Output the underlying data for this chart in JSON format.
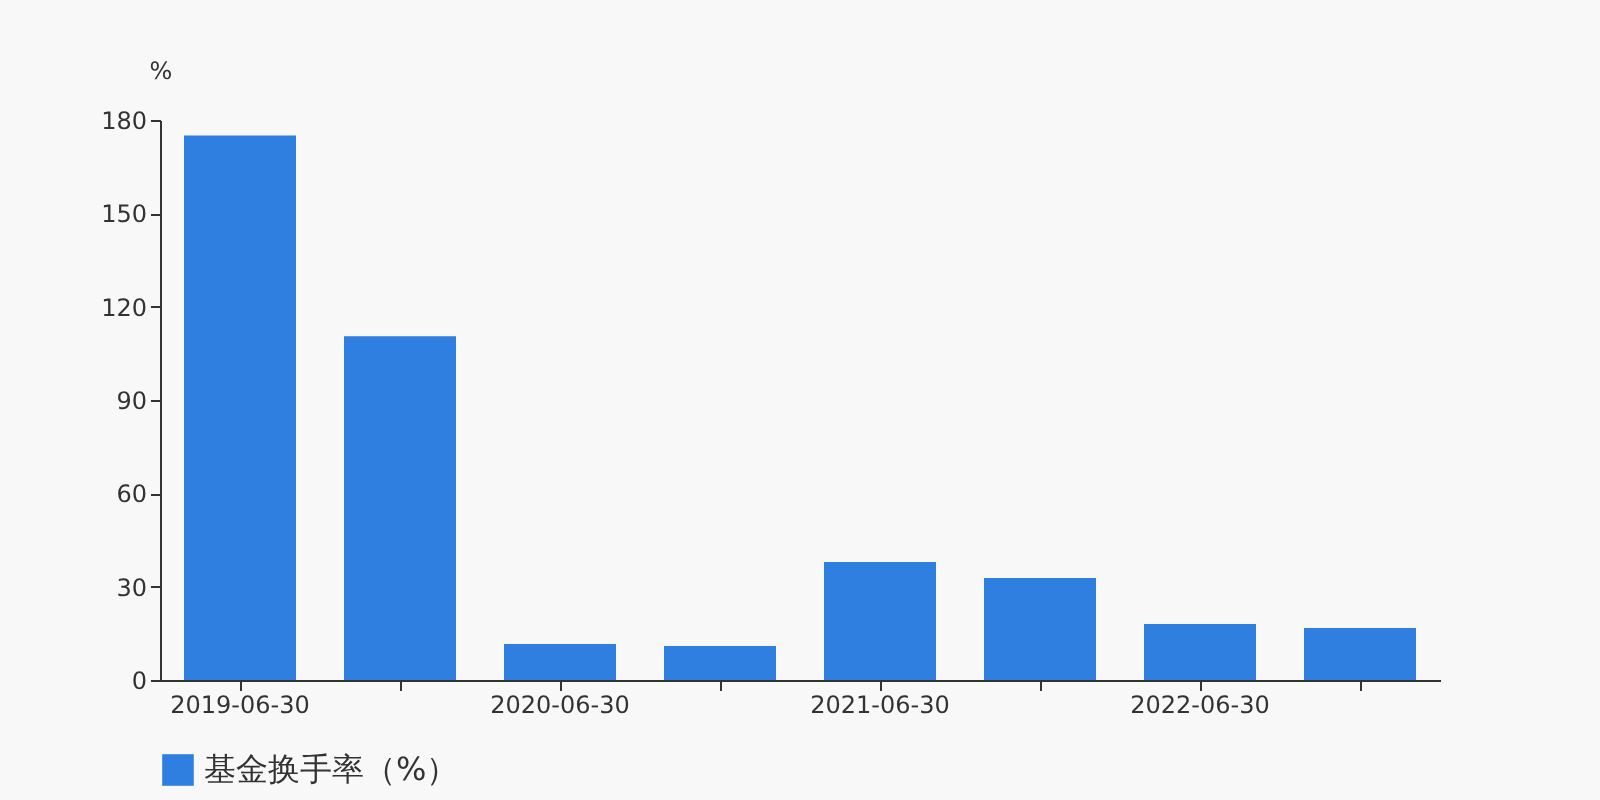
{
  "chart_data": {
    "type": "bar",
    "ylabel": "%",
    "categories": [
      "2019-06-30",
      null,
      "2020-06-30",
      null,
      "2021-06-30",
      null,
      "2022-06-30",
      null
    ],
    "series": [
      {
        "name": "基金换手率（%）",
        "color": "#2e7fe0",
        "values": [
          175,
          110.5,
          11.6,
          10.9,
          37.9,
          32.8,
          18,
          16.7
        ]
      }
    ],
    "ylim": [
      0,
      180
    ],
    "yticks": [
      0,
      30,
      60,
      90,
      120,
      150,
      180
    ],
    "grid": false,
    "legend": "bottom"
  }
}
